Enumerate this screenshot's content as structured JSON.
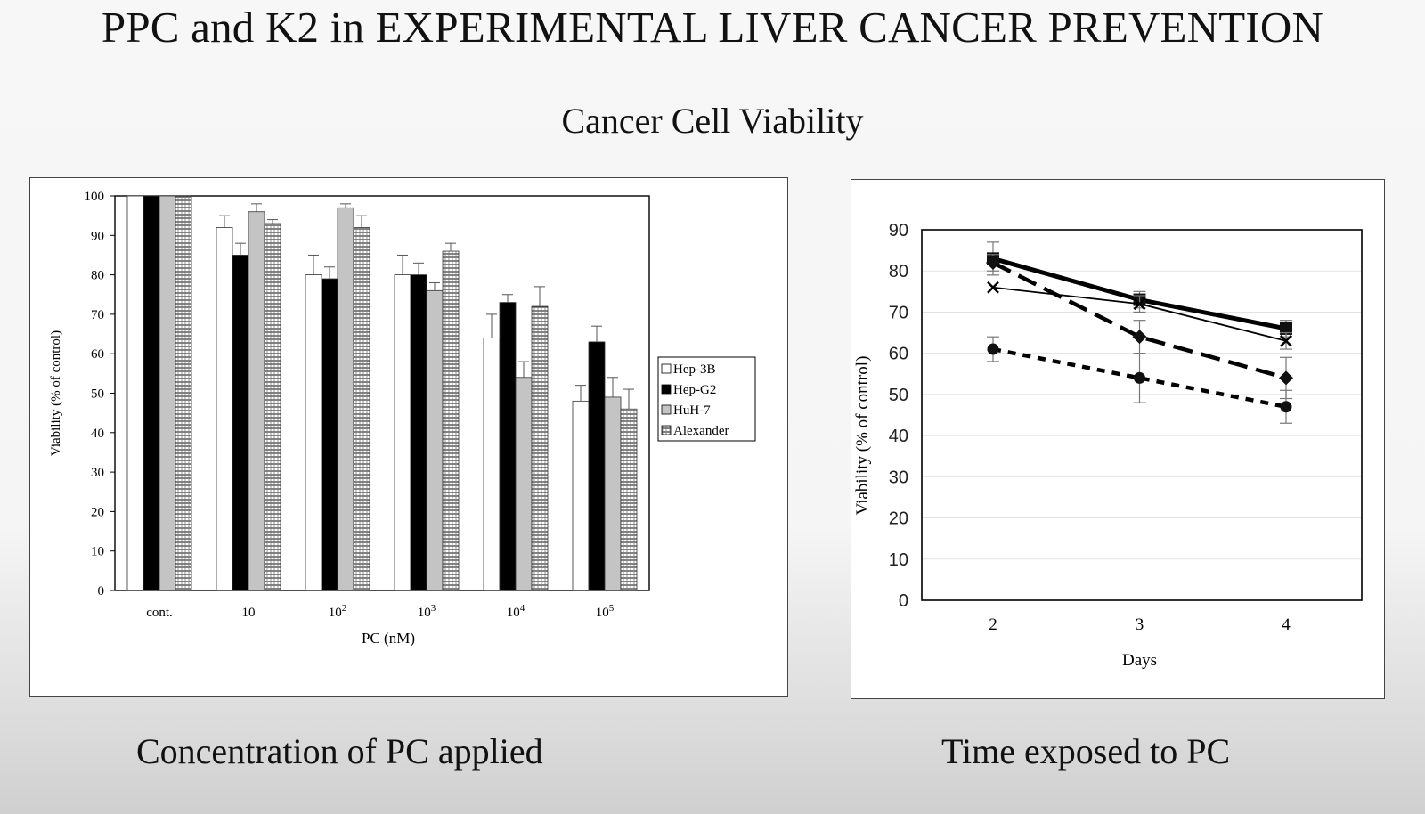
{
  "slide": {
    "title": "PPC and K2 in EXPERIMENTAL LIVER CANCER PREVENTION",
    "subtitle": "Cancer Cell Viability",
    "caption_left": "Concentration of PC applied",
    "caption_right": "Time exposed to PC"
  },
  "chart_data": [
    {
      "type": "bar",
      "xlabel": "PC (nM)",
      "ylabel": "Viability (% of control)",
      "ylim": [
        0,
        100
      ],
      "yticks": [
        0,
        10,
        20,
        30,
        40,
        50,
        60,
        70,
        80,
        90,
        100
      ],
      "categories": [
        {
          "base": "cont.",
          "exp": ""
        },
        {
          "base": "10",
          "exp": ""
        },
        {
          "base": "10",
          "exp": "2"
        },
        {
          "base": "10",
          "exp": "3"
        },
        {
          "base": "10",
          "exp": "4"
        },
        {
          "base": "10",
          "exp": "5"
        }
      ],
      "grid": false,
      "legend_position": "right",
      "series": [
        {
          "name": "Hep-3B",
          "fill": "white",
          "values": [
            100,
            92,
            80,
            80,
            64,
            48
          ],
          "errors": [
            0,
            3,
            5,
            5,
            6,
            4
          ]
        },
        {
          "name": "Hep-G2",
          "fill": "black",
          "values": [
            100,
            85,
            79,
            80,
            73,
            63
          ],
          "errors": [
            0,
            3,
            3,
            3,
            2,
            4
          ]
        },
        {
          "name": "HuH-7",
          "fill": "gray",
          "values": [
            100,
            96,
            97,
            76,
            54,
            49
          ],
          "errors": [
            0,
            2,
            1,
            2,
            4,
            5
          ]
        },
        {
          "name": "Alexander",
          "fill": "hatched",
          "values": [
            100,
            93,
            92,
            86,
            72,
            46
          ],
          "errors": [
            0,
            1,
            3,
            2,
            5,
            5
          ]
        }
      ]
    },
    {
      "type": "line",
      "xlabel": "Days",
      "ylabel": "Viability (% of control)",
      "ylim": [
        0,
        90
      ],
      "yticks": [
        0,
        10,
        20,
        30,
        40,
        50,
        60,
        70,
        80,
        90
      ],
      "x": [
        2,
        3,
        4
      ],
      "grid": true,
      "series": [
        {
          "marker": "square",
          "style": "thick-solid",
          "values": [
            83,
            73,
            66
          ],
          "errors": [
            4,
            2,
            2
          ]
        },
        {
          "marker": "x",
          "style": "thin-solid",
          "values": [
            76,
            72,
            63
          ],
          "errors": [
            0,
            2,
            2
          ]
        },
        {
          "marker": "diamond",
          "style": "long-dash",
          "values": [
            82,
            64,
            54
          ],
          "errors": [
            2,
            4,
            5
          ]
        },
        {
          "marker": "circle",
          "style": "short-dash",
          "values": [
            61,
            54,
            47
          ],
          "errors": [
            3,
            6,
            4
          ]
        }
      ]
    }
  ]
}
